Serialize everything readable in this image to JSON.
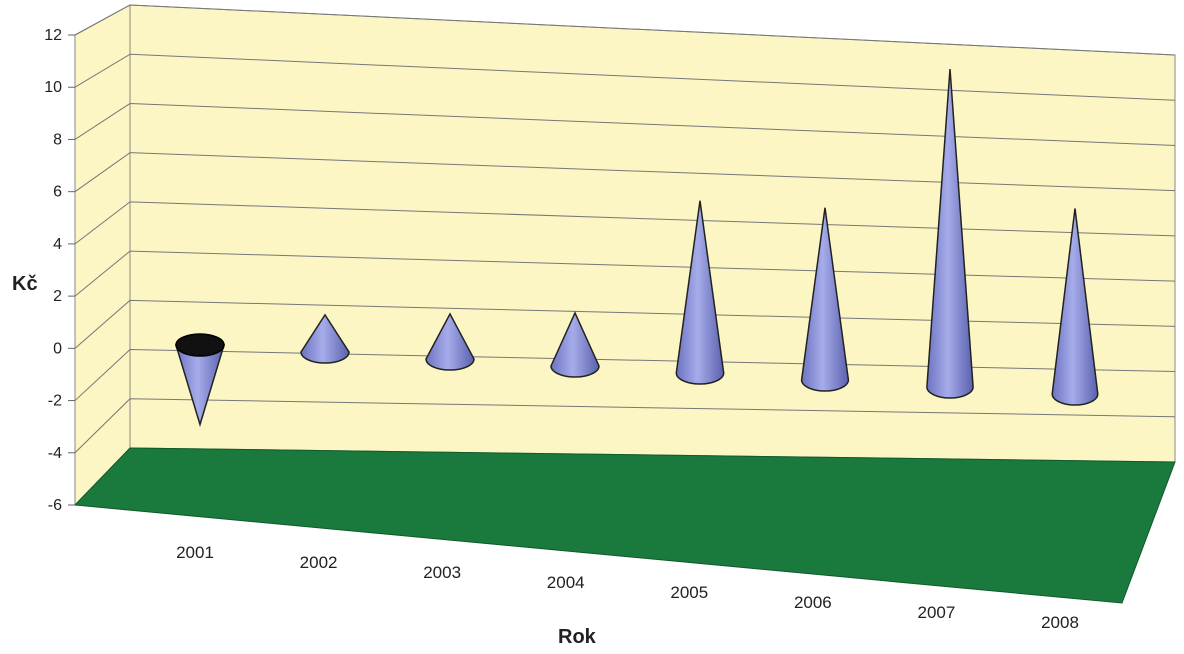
{
  "chart_data": {
    "type": "bar",
    "style": "3d-cone",
    "title": "",
    "xlabel": "Rok",
    "ylabel": "Kč",
    "categories": [
      "2001",
      "2002",
      "2003",
      "2004",
      "2005",
      "2006",
      "2007",
      "2008"
    ],
    "values": [
      -3.0,
      1.4,
      1.7,
      2.0,
      6.5,
      6.5,
      12.0,
      7.0
    ],
    "ylim": [
      -6,
      12
    ],
    "yticks": [
      "12",
      "10",
      "8",
      "6",
      "4",
      "2",
      "0",
      "-2",
      "-4",
      "-6"
    ],
    "grid": true,
    "legend": "none",
    "colors": {
      "wall": "#fbf6c4",
      "floor": "#1a7a3e",
      "cone": "#8d95d8",
      "cone_dark": "#5f66b0",
      "negative_base": "#111111",
      "gridline": "#777777"
    }
  }
}
